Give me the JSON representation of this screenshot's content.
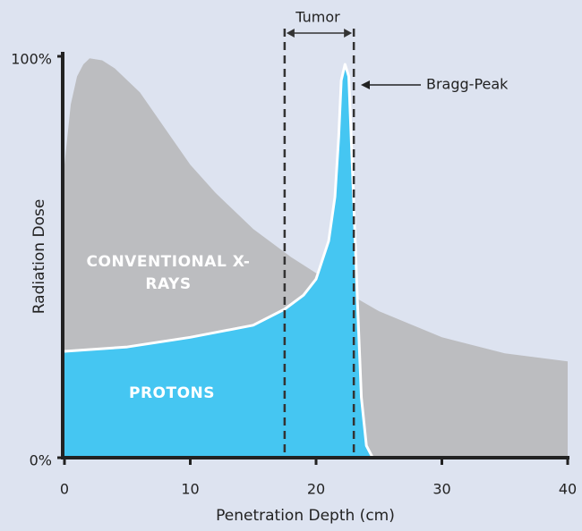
{
  "chart_data": {
    "type": "area",
    "xlabel": "Penetration Depth (cm)",
    "ylabel": "Radiation Dose",
    "xlim": [
      0,
      40
    ],
    "ylim": [
      0,
      100
    ],
    "xticks": [
      0,
      10,
      20,
      30,
      40
    ],
    "yticks": [
      {
        "value": 0,
        "label": "0%"
      },
      {
        "value": 100,
        "label": "100%"
      }
    ],
    "series": [
      {
        "name": "CONVENTIONAL X-RAYS",
        "color": "#bcbdc0",
        "stroke": "none",
        "x": [
          0,
          0.5,
          1,
          1.5,
          2,
          3,
          4,
          6,
          8,
          10,
          12,
          15,
          18,
          20,
          22.5,
          25,
          30,
          35,
          40
        ],
        "values": [
          73,
          88,
          95,
          98,
          99.5,
          99,
          97,
          91,
          82,
          73,
          66,
          57,
          50,
          46,
          41,
          36.5,
          30,
          26,
          24
        ]
      },
      {
        "name": "PROTONS",
        "color": "#45c6f2",
        "stroke": "#ffffff",
        "x": [
          0,
          5,
          10,
          15,
          17.5,
          19,
          20,
          21,
          21.5,
          21.8,
          22,
          22.3,
          22.6,
          23,
          23.3,
          23.6,
          24,
          24.5
        ],
        "values": [
          26.5,
          27.6,
          30,
          33,
          37,
          40.5,
          44.5,
          54,
          65,
          80,
          94,
          98,
          95,
          63,
          38,
          15,
          3,
          0
        ]
      }
    ],
    "tumor": {
      "label": "Tumor",
      "x": [
        17.5,
        23
      ]
    },
    "bragg_peak": {
      "label": "Bragg-Peak"
    }
  }
}
